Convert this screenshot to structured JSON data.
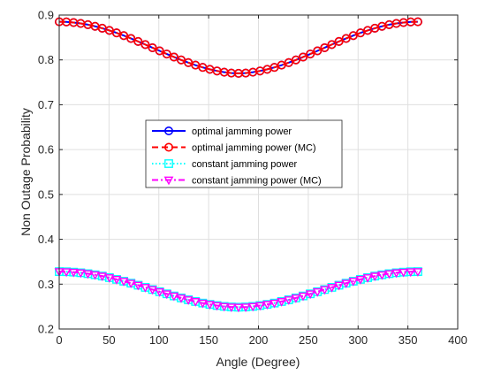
{
  "chart_data": {
    "type": "line",
    "xlabel": "Angle (Degree)",
    "ylabel": "Non Outage Probability",
    "xlim": [
      0,
      400
    ],
    "ylim": [
      0.2,
      0.9
    ],
    "x_ticks": [
      0,
      50,
      100,
      150,
      200,
      250,
      300,
      350,
      400
    ],
    "y_ticks": [
      0.2,
      0.3,
      0.4,
      0.5,
      0.6,
      0.7,
      0.8,
      0.9
    ],
    "x_tick_labels": [
      "0",
      "50",
      "100",
      "150",
      "200",
      "250",
      "300",
      "350",
      "400"
    ],
    "y_tick_labels": [
      "0.2",
      "0.3",
      "0.4",
      "0.5",
      "0.6",
      "0.7",
      "0.8",
      "0.9"
    ],
    "grid": true,
    "legend_position": "center-left",
    "x": [
      0,
      7.2,
      14.4,
      21.6,
      28.8,
      36,
      43.2,
      50.4,
      57.6,
      64.8,
      72,
      79.2,
      86.4,
      93.6,
      100.8,
      108,
      115.2,
      122.4,
      129.6,
      136.8,
      144,
      151.2,
      158.4,
      165.6,
      172.8,
      180,
      187.2,
      194.4,
      201.6,
      208.8,
      216,
      223.2,
      230.4,
      237.6,
      244.8,
      252,
      259.2,
      266.4,
      273.6,
      280.8,
      288,
      295.2,
      302.4,
      309.6,
      316.8,
      324,
      331.2,
      338.4,
      345.6,
      352.8,
      360
    ],
    "series": [
      {
        "name": "optimal jamming power",
        "color": "#0000ff",
        "line_style": "solid",
        "marker": "circle",
        "values": [
          0.885,
          0.8846,
          0.8833,
          0.8813,
          0.8785,
          0.8749,
          0.8706,
          0.8657,
          0.8602,
          0.8542,
          0.8478,
          0.8411,
          0.8342,
          0.8271,
          0.8201,
          0.8131,
          0.8064,
          0.7999,
          0.7939,
          0.7883,
          0.7833,
          0.779,
          0.7754,
          0.7726,
          0.7706,
          0.77,
          0.7706,
          0.7726,
          0.7754,
          0.779,
          0.7833,
          0.7883,
          0.7939,
          0.7999,
          0.8064,
          0.8131,
          0.8201,
          0.8271,
          0.8342,
          0.8411,
          0.8478,
          0.8542,
          0.8602,
          0.8657,
          0.8706,
          0.8749,
          0.8785,
          0.8813,
          0.8833,
          0.8846,
          0.885
        ]
      },
      {
        "name": "optimal jamming power (MC)",
        "color": "#ff0000",
        "line_style": "dashed",
        "marker": "circle",
        "values": [
          0.885,
          0.8846,
          0.8833,
          0.8813,
          0.8785,
          0.8749,
          0.8706,
          0.8657,
          0.8602,
          0.8542,
          0.8478,
          0.8411,
          0.8342,
          0.8271,
          0.8201,
          0.8131,
          0.8064,
          0.7999,
          0.7939,
          0.7883,
          0.7833,
          0.779,
          0.7754,
          0.7726,
          0.7706,
          0.77,
          0.7706,
          0.7726,
          0.7754,
          0.779,
          0.7833,
          0.7883,
          0.7939,
          0.7999,
          0.8064,
          0.8131,
          0.8201,
          0.8271,
          0.8342,
          0.8411,
          0.8478,
          0.8542,
          0.8602,
          0.8657,
          0.8706,
          0.8749,
          0.8785,
          0.8813,
          0.8833,
          0.8846,
          0.885
        ]
      },
      {
        "name": "constant jamming power",
        "color": "#00ffff",
        "line_style": "dotted",
        "marker": "square",
        "values": [
          0.328,
          0.3277,
          0.3268,
          0.3254,
          0.3234,
          0.3209,
          0.318,
          0.3145,
          0.3107,
          0.3066,
          0.3022,
          0.2976,
          0.2928,
          0.288,
          0.2831,
          0.2784,
          0.2737,
          0.2693,
          0.2651,
          0.2613,
          0.2578,
          0.2549,
          0.2524,
          0.2504,
          0.2491,
          0.2486,
          0.2491,
          0.2504,
          0.2524,
          0.2549,
          0.2578,
          0.2613,
          0.2651,
          0.2693,
          0.2737,
          0.2784,
          0.2831,
          0.288,
          0.2928,
          0.2976,
          0.3022,
          0.3066,
          0.3107,
          0.3145,
          0.318,
          0.3209,
          0.3234,
          0.3254,
          0.3268,
          0.3277,
          0.328
        ]
      },
      {
        "name": "constant jamming power (MC)",
        "color": "#ff00ff",
        "line_style": "dashdot",
        "marker": "triangle-down",
        "values": [
          0.328,
          0.3277,
          0.3268,
          0.3254,
          0.3234,
          0.3209,
          0.318,
          0.3145,
          0.3107,
          0.3066,
          0.3022,
          0.2976,
          0.2928,
          0.288,
          0.2831,
          0.2784,
          0.2737,
          0.2693,
          0.2651,
          0.2613,
          0.2578,
          0.2549,
          0.2524,
          0.2504,
          0.2491,
          0.2486,
          0.2491,
          0.2504,
          0.2524,
          0.2549,
          0.2578,
          0.2613,
          0.2651,
          0.2693,
          0.2737,
          0.2784,
          0.2831,
          0.288,
          0.2928,
          0.2976,
          0.3022,
          0.3066,
          0.3107,
          0.3145,
          0.318,
          0.3209,
          0.3234,
          0.3254,
          0.3268,
          0.3277,
          0.328
        ]
      }
    ]
  }
}
